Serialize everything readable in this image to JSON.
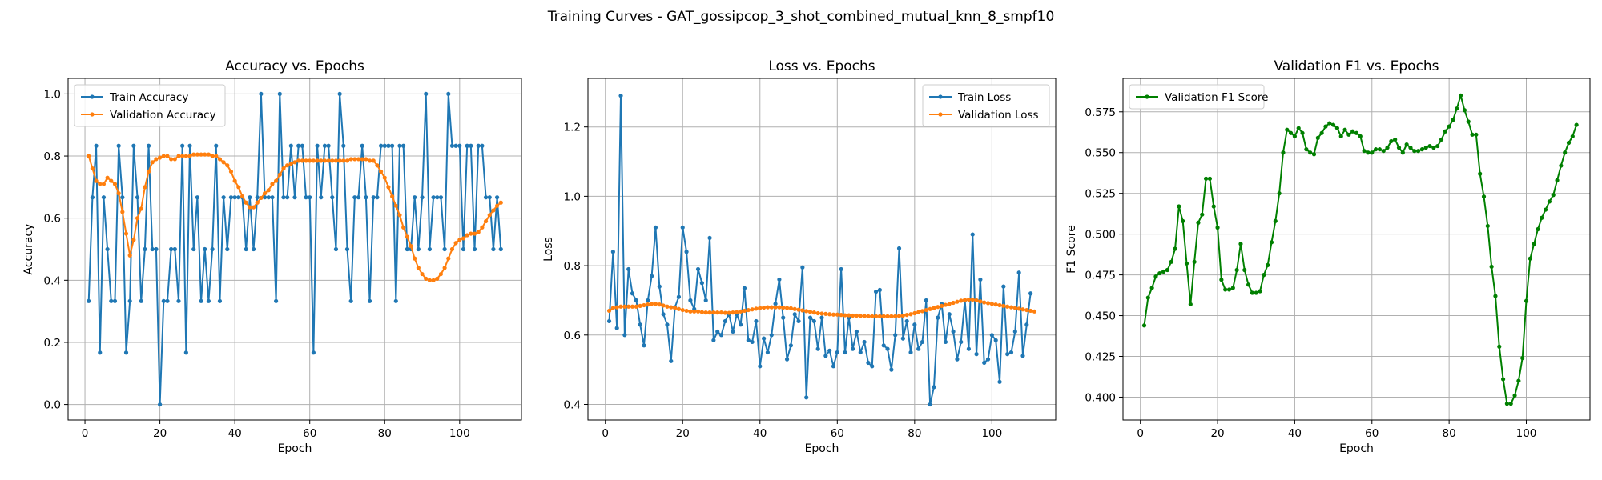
{
  "suptitle": "Training Curves - GAT_gossipcop_3_shot_combined_mutual_knn_8_smpf10",
  "colors": {
    "train": "#1f77b4",
    "val": "#ff7f0e",
    "f1": "#008000",
    "grid": "#b0b0b0"
  },
  "chart_data": [
    {
      "type": "line",
      "title": "Accuracy vs. Epochs",
      "xlabel": "Epoch",
      "ylabel": "Accuracy",
      "xlim": [
        -4.5,
        116.5
      ],
      "ylim": [
        -0.05,
        1.05
      ],
      "xticks": [
        0,
        20,
        40,
        60,
        80,
        100
      ],
      "yticks": [
        0.0,
        0.2,
        0.4,
        0.6,
        0.8,
        1.0
      ],
      "ytick_labels": [
        "0.0",
        "0.2",
        "0.4",
        "0.6",
        "0.8",
        "1.0"
      ],
      "legend_position": "upper-left",
      "series": [
        {
          "name": "Train Accuracy",
          "color_key": "train",
          "values": [
            0.333,
            0.667,
            0.833,
            0.167,
            0.667,
            0.5,
            0.333,
            0.333,
            0.833,
            0.667,
            0.167,
            0.333,
            0.833,
            0.667,
            0.333,
            0.5,
            0.833,
            0.5,
            0.5,
            0.0,
            0.333,
            0.333,
            0.5,
            0.5,
            0.333,
            0.833,
            0.167,
            0.833,
            0.5,
            0.667,
            0.333,
            0.5,
            0.333,
            0.5,
            0.833,
            0.333,
            0.667,
            0.5,
            0.667,
            0.667,
            0.667,
            0.667,
            0.5,
            0.667,
            0.5,
            0.667,
            1.0,
            0.667,
            0.667,
            0.667,
            0.333,
            1.0,
            0.667,
            0.667,
            0.833,
            0.667,
            0.833,
            0.833,
            0.667,
            0.667,
            0.167,
            0.833,
            0.667,
            0.833,
            0.833,
            0.667,
            0.5,
            1.0,
            0.833,
            0.5,
            0.333,
            0.667,
            0.667,
            0.833,
            0.667,
            0.333,
            0.667,
            0.667,
            0.833,
            0.833,
            0.833,
            0.833,
            0.333,
            0.833,
            0.833,
            0.5,
            0.5,
            0.667,
            0.5,
            0.667,
            1.0,
            0.5,
            0.667,
            0.667,
            0.667,
            0.5,
            1.0,
            0.833,
            0.833,
            0.833,
            0.5,
            0.833,
            0.833,
            0.5,
            0.833,
            0.833,
            0.667,
            0.667,
            0.5,
            0.667,
            0.5
          ]
        },
        {
          "name": "Validation Accuracy",
          "color_key": "val",
          "values": [
            0.8,
            0.76,
            0.72,
            0.71,
            0.71,
            0.73,
            0.72,
            0.71,
            0.68,
            0.62,
            0.55,
            0.48,
            0.53,
            0.6,
            0.63,
            0.7,
            0.75,
            0.78,
            0.79,
            0.795,
            0.8,
            0.8,
            0.79,
            0.79,
            0.8,
            0.8,
            0.8,
            0.8,
            0.805,
            0.805,
            0.805,
            0.805,
            0.805,
            0.8,
            0.8,
            0.79,
            0.78,
            0.77,
            0.75,
            0.72,
            0.7,
            0.67,
            0.65,
            0.635,
            0.635,
            0.65,
            0.665,
            0.68,
            0.69,
            0.71,
            0.72,
            0.74,
            0.76,
            0.77,
            0.775,
            0.78,
            0.785,
            0.785,
            0.785,
            0.785,
            0.785,
            0.785,
            0.785,
            0.785,
            0.785,
            0.785,
            0.785,
            0.785,
            0.785,
            0.785,
            0.79,
            0.79,
            0.79,
            0.79,
            0.79,
            0.785,
            0.785,
            0.77,
            0.75,
            0.73,
            0.7,
            0.67,
            0.64,
            0.61,
            0.57,
            0.54,
            0.51,
            0.47,
            0.44,
            0.42,
            0.405,
            0.4,
            0.4,
            0.405,
            0.42,
            0.44,
            0.47,
            0.5,
            0.52,
            0.53,
            0.535,
            0.545,
            0.55,
            0.55,
            0.555,
            0.57,
            0.59,
            0.61,
            0.625,
            0.64,
            0.65
          ]
        }
      ]
    },
    {
      "type": "line",
      "title": "Loss vs. Epochs",
      "xlabel": "Epoch",
      "ylabel": "Loss",
      "xlim": [
        -4.5,
        116.5
      ],
      "ylim": [
        0.355,
        1.34
      ],
      "xticks": [
        0,
        20,
        40,
        60,
        80,
        100
      ],
      "yticks": [
        0.4,
        0.6,
        0.8,
        1.0,
        1.2
      ],
      "ytick_labels": [
        "0.4",
        "0.6",
        "0.8",
        "1.0",
        "1.2"
      ],
      "legend_position": "upper-right",
      "series": [
        {
          "name": "Train Loss",
          "color_key": "train",
          "values": [
            0.64,
            0.84,
            0.62,
            1.29,
            0.6,
            0.79,
            0.72,
            0.7,
            0.63,
            0.57,
            0.7,
            0.77,
            0.91,
            0.74,
            0.66,
            0.63,
            0.525,
            0.68,
            0.71,
            0.91,
            0.84,
            0.7,
            0.675,
            0.79,
            0.75,
            0.7,
            0.88,
            0.585,
            0.61,
            0.6,
            0.64,
            0.66,
            0.61,
            0.66,
            0.63,
            0.735,
            0.585,
            0.58,
            0.64,
            0.51,
            0.59,
            0.55,
            0.6,
            0.69,
            0.76,
            0.65,
            0.53,
            0.57,
            0.66,
            0.64,
            0.795,
            0.42,
            0.65,
            0.64,
            0.56,
            0.65,
            0.54,
            0.555,
            0.51,
            0.55,
            0.79,
            0.55,
            0.65,
            0.56,
            0.61,
            0.55,
            0.58,
            0.52,
            0.51,
            0.725,
            0.73,
            0.57,
            0.56,
            0.5,
            0.6,
            0.85,
            0.59,
            0.64,
            0.55,
            0.63,
            0.56,
            0.58,
            0.7,
            0.4,
            0.45,
            0.65,
            0.69,
            0.58,
            0.66,
            0.61,
            0.53,
            0.58,
            0.7,
            0.56,
            0.89,
            0.545,
            0.76,
            0.52,
            0.53,
            0.6,
            0.585,
            0.465,
            0.74,
            0.545,
            0.55,
            0.61,
            0.78,
            0.54,
            0.63,
            0.72
          ]
        },
        {
          "name": "Validation Loss",
          "color_key": "val",
          "values": [
            0.67,
            0.678,
            0.68,
            0.682,
            0.682,
            0.682,
            0.682,
            0.682,
            0.684,
            0.686,
            0.688,
            0.69,
            0.69,
            0.688,
            0.685,
            0.682,
            0.68,
            0.678,
            0.675,
            0.672,
            0.67,
            0.668,
            0.668,
            0.668,
            0.666,
            0.665,
            0.665,
            0.665,
            0.665,
            0.665,
            0.664,
            0.664,
            0.665,
            0.666,
            0.668,
            0.67,
            0.672,
            0.674,
            0.676,
            0.678,
            0.679,
            0.68,
            0.68,
            0.68,
            0.68,
            0.679,
            0.678,
            0.677,
            0.675,
            0.673,
            0.671,
            0.669,
            0.667,
            0.665,
            0.663,
            0.662,
            0.661,
            0.66,
            0.659,
            0.659,
            0.658,
            0.657,
            0.657,
            0.656,
            0.656,
            0.655,
            0.655,
            0.654,
            0.654,
            0.654,
            0.654,
            0.654,
            0.654,
            0.654,
            0.654,
            0.655,
            0.656,
            0.658,
            0.66,
            0.663,
            0.666,
            0.669,
            0.672,
            0.675,
            0.678,
            0.681,
            0.684,
            0.687,
            0.69,
            0.693,
            0.696,
            0.699,
            0.701,
            0.702,
            0.702,
            0.7,
            0.697,
            0.694,
            0.692,
            0.69,
            0.688,
            0.686,
            0.684,
            0.682,
            0.68,
            0.678,
            0.676,
            0.674,
            0.672,
            0.67,
            0.668
          ]
        }
      ]
    },
    {
      "type": "line",
      "title": "Validation F1 vs. Epochs",
      "xlabel": "Epoch",
      "ylabel": "F1 Score",
      "xlim": [
        -4.5,
        116.5
      ],
      "ylim": [
        0.386,
        0.5955
      ],
      "xticks": [
        0,
        20,
        40,
        60,
        80,
        100
      ],
      "yticks": [
        0.4,
        0.425,
        0.45,
        0.475,
        0.5,
        0.525,
        0.55,
        0.575
      ],
      "ytick_labels": [
        "0.400",
        "0.425",
        "0.450",
        "0.475",
        "0.500",
        "0.525",
        "0.550",
        "0.575"
      ],
      "legend_position": "upper-left",
      "series": [
        {
          "name": "Validation F1 Score",
          "color_key": "f1",
          "values": [
            0.444,
            0.461,
            0.467,
            0.474,
            0.476,
            0.477,
            0.478,
            0.483,
            0.491,
            0.517,
            0.508,
            0.482,
            0.457,
            0.483,
            0.507,
            0.512,
            0.534,
            0.534,
            0.517,
            0.504,
            0.472,
            0.466,
            0.466,
            0.467,
            0.478,
            0.494,
            0.478,
            0.469,
            0.464,
            0.464,
            0.465,
            0.475,
            0.481,
            0.495,
            0.508,
            0.525,
            0.55,
            0.564,
            0.562,
            0.56,
            0.565,
            0.562,
            0.552,
            0.55,
            0.549,
            0.559,
            0.562,
            0.566,
            0.568,
            0.567,
            0.565,
            0.56,
            0.564,
            0.561,
            0.563,
            0.562,
            0.56,
            0.551,
            0.55,
            0.55,
            0.552,
            0.552,
            0.551,
            0.553,
            0.557,
            0.558,
            0.553,
            0.55,
            0.555,
            0.553,
            0.551,
            0.551,
            0.552,
            0.553,
            0.554,
            0.553,
            0.554,
            0.558,
            0.563,
            0.566,
            0.57,
            0.577,
            0.585,
            0.576,
            0.569,
            0.561,
            0.561,
            0.537,
            0.523,
            0.505,
            0.48,
            0.462,
            0.431,
            0.411,
            0.396,
            0.396,
            0.401,
            0.41,
            0.424,
            0.459,
            0.485,
            0.494,
            0.503,
            0.51,
            0.515,
            0.52,
            0.524,
            0.533,
            0.542,
            0.55,
            0.556,
            0.56,
            0.567
          ]
        }
      ]
    }
  ]
}
